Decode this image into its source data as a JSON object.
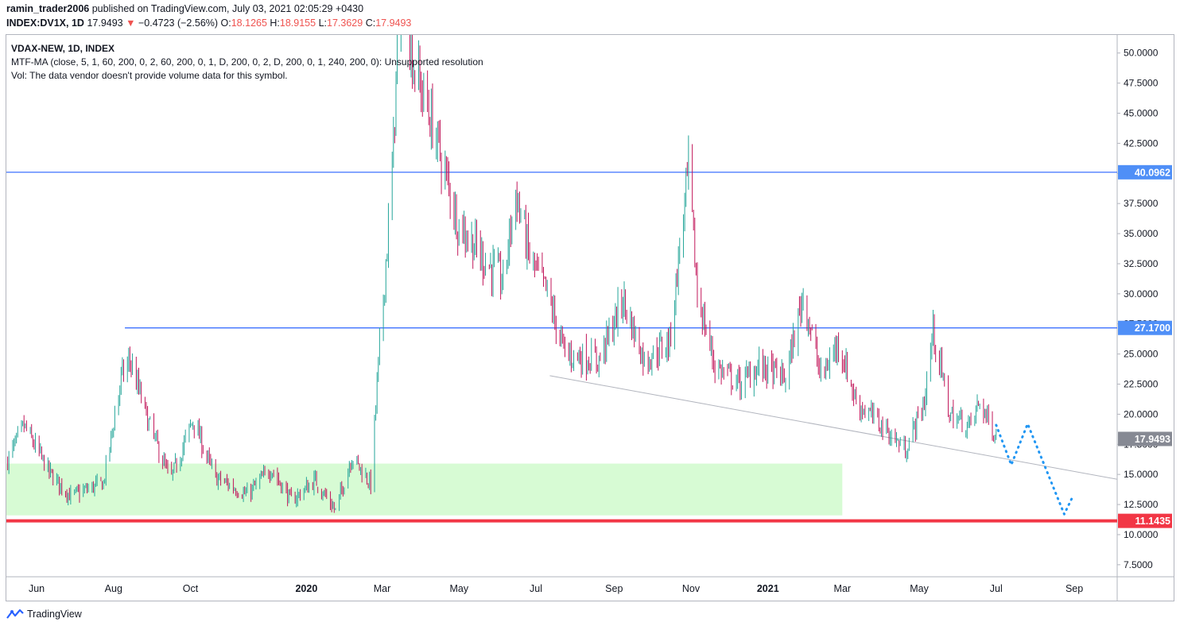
{
  "header": {
    "author": "ramin_trader2006",
    "published_text": "published on TradingView.com, July 03, 2021 02:05:29 +0430",
    "symbol": "INDEX:DV1X, 1D",
    "last": "17.9493",
    "arrow": "▼",
    "change": "−0.4723 (−2.56%)",
    "o_label": "O:",
    "o": "18.1265",
    "h_label": "H:",
    "h": "18.9155",
    "l_label": "L:",
    "l": "17.3629",
    "c_label": "C:",
    "c": "17.9493"
  },
  "legend": {
    "title": "VDAX-NEW, 1D, INDEX",
    "line2": "MTF-MA (close, 5, 1, 60, 200, 0, 2, 60, 200, 0, 1, D, 200, 0, 2, D, 200, 0, 1, 240, 200, 0): Unsupported resolution",
    "line3": "Vol: The data vendor doesn't provide volume data for this symbol."
  },
  "footer": {
    "brand": "TradingView"
  },
  "colors": {
    "up": "#26a69a",
    "down": "#c2185b",
    "hline": "#2962ff",
    "support": "#f23645",
    "zone": "#d7fbd4",
    "trend": "#b2b5be",
    "projection": "#2196f3",
    "last_badge": "#868993"
  },
  "chart_data": {
    "type": "candlestick",
    "y_ticks": [
      "50.0000",
      "47.5000",
      "45.0000",
      "42.5000",
      "40.0000",
      "37.5000",
      "35.0000",
      "32.5000",
      "30.0000",
      "27.5000",
      "25.0000",
      "22.5000",
      "20.0000",
      "17.5000",
      "15.0000",
      "12.5000",
      "10.0000",
      "7.5000"
    ],
    "ylim": [
      6.5,
      51.5
    ],
    "x_ticks": [
      {
        "label": "Jun",
        "date": "2019-06-01",
        "bold": false
      },
      {
        "label": "Aug",
        "date": "2019-08-01",
        "bold": false
      },
      {
        "label": "Oct",
        "date": "2019-10-01",
        "bold": false
      },
      {
        "label": "2020",
        "date": "2020-01-01",
        "bold": true
      },
      {
        "label": "Mar",
        "date": "2020-03-01",
        "bold": false
      },
      {
        "label": "May",
        "date": "2020-05-01",
        "bold": false
      },
      {
        "label": "Jul",
        "date": "2020-07-01",
        "bold": false
      },
      {
        "label": "Sep",
        "date": "2020-09-01",
        "bold": false
      },
      {
        "label": "Nov",
        "date": "2020-11-01",
        "bold": false
      },
      {
        "label": "2021",
        "date": "2021-01-01",
        "bold": true
      },
      {
        "label": "Mar",
        "date": "2021-03-01",
        "bold": false
      },
      {
        "label": "May",
        "date": "2021-05-01",
        "bold": false
      },
      {
        "label": "Jul",
        "date": "2021-07-01",
        "bold": false
      },
      {
        "label": "Sep",
        "date": "2021-09-01",
        "bold": false
      }
    ],
    "xlim": [
      "2019-05-08",
      "2021-10-05"
    ],
    "price_levels": [
      {
        "value": 40.0962,
        "label": "40.0962",
        "kind": "resistance",
        "from": "2019-05-08"
      },
      {
        "value": 27.17,
        "label": "27.1700",
        "kind": "resistance",
        "from": "2019-08-10"
      },
      {
        "value": 11.1435,
        "label": "11.1435",
        "kind": "support",
        "from": "2019-05-08"
      }
    ],
    "last_price": {
      "value": 17.9493,
      "label": "17.9493"
    },
    "zone": {
      "from": "2019-05-08",
      "to": "2021-03-01",
      "low": 11.6,
      "high": 15.9
    },
    "trendline": {
      "from": {
        "date": "2020-07-12",
        "value": 23.2
      },
      "to": {
        "date": "2021-10-05",
        "value": 14.6
      }
    },
    "projection": [
      {
        "date": "2021-07-01",
        "value": 19.1
      },
      {
        "date": "2021-07-13",
        "value": 15.8
      },
      {
        "date": "2021-07-26",
        "value": 19.2
      },
      {
        "date": "2021-08-24",
        "value": 11.7
      },
      {
        "date": "2021-08-30",
        "value": 13.0
      }
    ],
    "anchors": [
      {
        "date": "2019-05-09",
        "value": 16.2
      },
      {
        "date": "2019-05-22",
        "value": 19.0
      },
      {
        "date": "2019-06-12",
        "value": 15.0
      },
      {
        "date": "2019-06-28",
        "value": 13.2
      },
      {
        "date": "2019-07-24",
        "value": 14.3
      },
      {
        "date": "2019-08-07",
        "value": 23.0
      },
      {
        "date": "2019-08-14",
        "value": 24.5
      },
      {
        "date": "2019-08-28",
        "value": 19.5
      },
      {
        "date": "2019-09-15",
        "value": 14.5
      },
      {
        "date": "2019-10-03",
        "value": 19.5
      },
      {
        "date": "2019-10-20",
        "value": 14.8
      },
      {
        "date": "2019-11-15",
        "value": 13.3
      },
      {
        "date": "2019-12-04",
        "value": 15.5
      },
      {
        "date": "2019-12-20",
        "value": 12.8
      },
      {
        "date": "2020-01-08",
        "value": 14.5
      },
      {
        "date": "2020-01-24",
        "value": 12.0
      },
      {
        "date": "2020-02-06",
        "value": 16.5
      },
      {
        "date": "2020-02-21",
        "value": 14.2
      },
      {
        "date": "2020-02-27",
        "value": 24.0
      },
      {
        "date": "2020-03-09",
        "value": 40.0
      },
      {
        "date": "2020-03-16",
        "value": 58.0
      },
      {
        "date": "2020-03-26",
        "value": 49.0
      },
      {
        "date": "2020-04-10",
        "value": 44.0
      },
      {
        "date": "2020-04-30",
        "value": 36.0
      },
      {
        "date": "2020-05-20",
        "value": 33.0
      },
      {
        "date": "2020-06-05",
        "value": 31.0
      },
      {
        "date": "2020-06-15",
        "value": 38.5
      },
      {
        "date": "2020-06-26",
        "value": 33.0
      },
      {
        "date": "2020-07-10",
        "value": 30.0
      },
      {
        "date": "2020-07-24",
        "value": 25.0
      },
      {
        "date": "2020-08-20",
        "value": 24.5
      },
      {
        "date": "2020-09-08",
        "value": 29.5
      },
      {
        "date": "2020-09-25",
        "value": 24.5
      },
      {
        "date": "2020-10-15",
        "value": 26.0
      },
      {
        "date": "2020-10-30",
        "value": 40.5
      },
      {
        "date": "2020-11-06",
        "value": 30.0
      },
      {
        "date": "2020-11-20",
        "value": 24.0
      },
      {
        "date": "2020-12-10",
        "value": 22.5
      },
      {
        "date": "2020-12-25",
        "value": 24.0
      },
      {
        "date": "2021-01-15",
        "value": 23.0
      },
      {
        "date": "2021-01-29",
        "value": 30.0
      },
      {
        "date": "2021-02-12",
        "value": 23.0
      },
      {
        "date": "2021-02-26",
        "value": 26.0
      },
      {
        "date": "2021-03-12",
        "value": 21.0
      },
      {
        "date": "2021-04-02",
        "value": 19.0
      },
      {
        "date": "2021-04-20",
        "value": 17.0
      },
      {
        "date": "2021-05-05",
        "value": 21.0
      },
      {
        "date": "2021-05-12",
        "value": 27.0
      },
      {
        "date": "2021-05-25",
        "value": 20.0
      },
      {
        "date": "2021-06-10",
        "value": 19.0
      },
      {
        "date": "2021-06-18",
        "value": 21.0
      },
      {
        "date": "2021-07-02",
        "value": 17.95
      }
    ]
  }
}
